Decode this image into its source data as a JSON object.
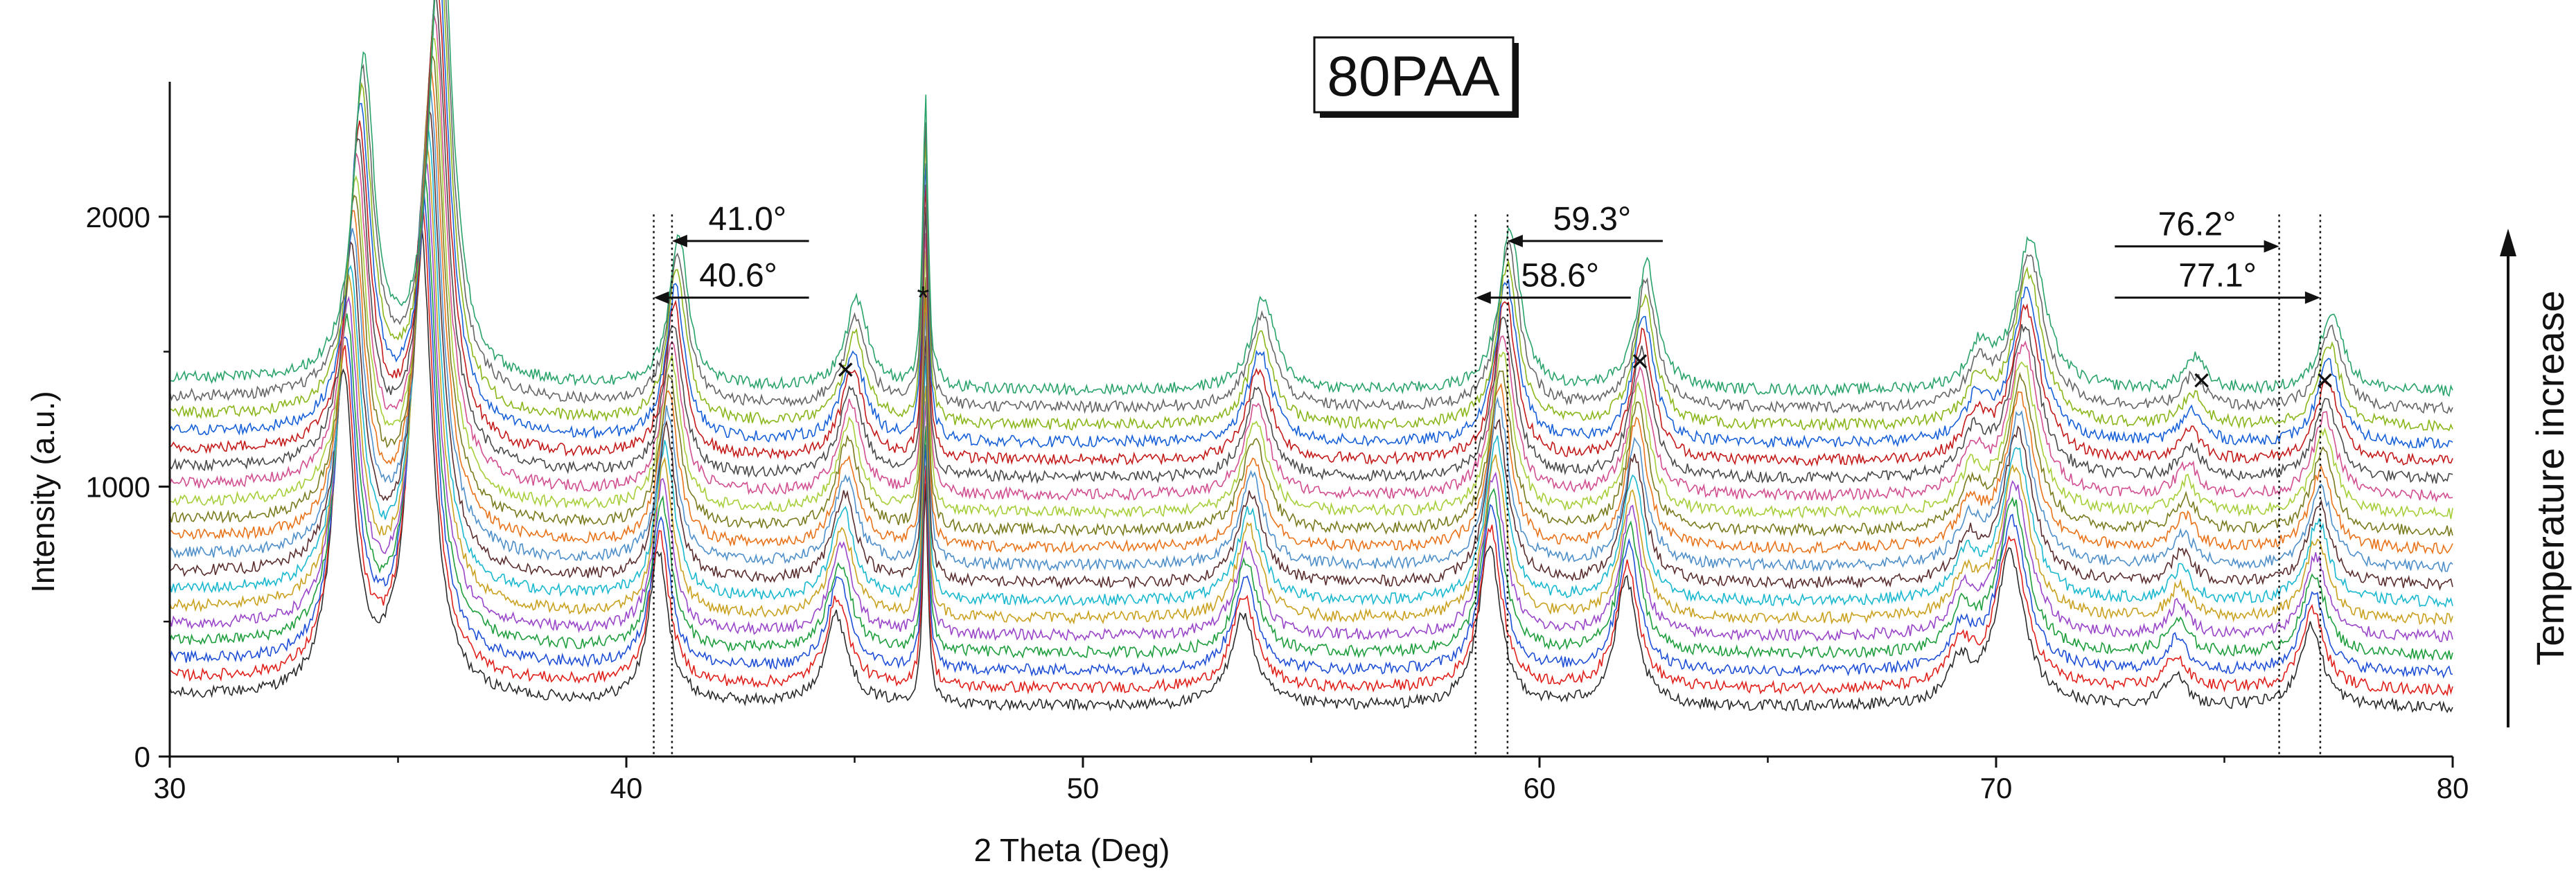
{
  "chart_data": {
    "type": "line",
    "title": "80PAA",
    "xlabel": "2 Theta (Deg)",
    "ylabel": "Intensity (a.u.)",
    "xlim": [
      30,
      80
    ],
    "ylim": [
      0,
      2500
    ],
    "x_ticks": [
      "30",
      "40",
      "50",
      "60",
      "70",
      "80"
    ],
    "y_ticks": [
      "0",
      "1000",
      "2000"
    ],
    "grid": false,
    "series_count": 19,
    "series_note": "XRD patterns stacked bottom to top with increasing temperature",
    "series_colors": [
      "#2b2b2b",
      "#e0201b",
      "#1f4fd6",
      "#1e9e3c",
      "#9a46c9",
      "#c9a11f",
      "#19b8cf",
      "#5a2e2e",
      "#4f8fc9",
      "#e8731a",
      "#7a7a1e",
      "#a6ce39",
      "#d14f90",
      "#4a4a4a",
      "#c41a1a",
      "#1760d8",
      "#8ab61b",
      "#666666",
      "#2aa36b"
    ],
    "baseline_bottom": 180,
    "baseline_top": 1350,
    "peak_markers": [
      {
        "label": "*",
        "x": 46.5,
        "y": 1700
      },
      {
        "label": "×",
        "x": 44.8,
        "y": 1435
      },
      {
        "label": "×",
        "x": 62.2,
        "y": 1465
      },
      {
        "label": "×",
        "x": 74.5,
        "y": 1395
      },
      {
        "label": "×",
        "x": 77.2,
        "y": 1395
      }
    ],
    "reference_lines": [
      40.6,
      41.0,
      58.6,
      59.3,
      76.2,
      77.1
    ],
    "shift_annotations": [
      {
        "label": "41.0°",
        "from": 44.0,
        "to": 41.0,
        "y": 1910
      },
      {
        "label": "40.6°",
        "from": 44.0,
        "to": 40.6,
        "y": 1700
      },
      {
        "label": "59.3°",
        "from": 62.7,
        "to": 59.3,
        "y": 1910
      },
      {
        "label": "58.6°",
        "from": 62.0,
        "to": 58.6,
        "y": 1700
      },
      {
        "label": "76.2°",
        "from": 72.6,
        "to": 76.2,
        "y": 1890
      },
      {
        "label": "77.1°",
        "from": 72.6,
        "to": 77.1,
        "y": 1700
      }
    ],
    "side_label": "Temperature increase"
  }
}
